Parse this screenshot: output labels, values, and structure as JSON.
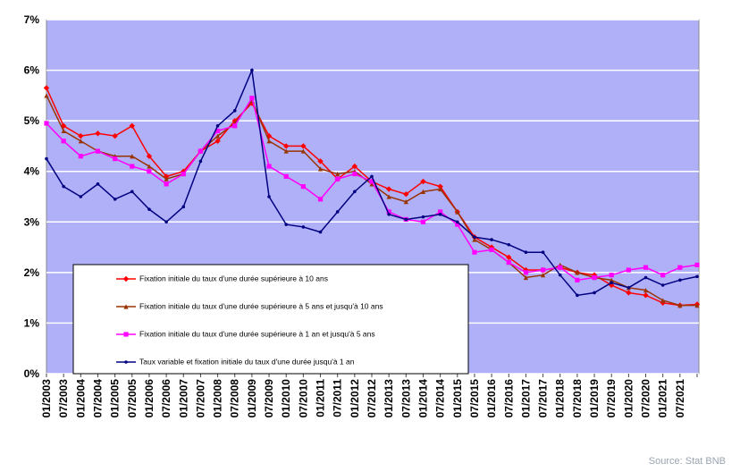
{
  "chart_data": {
    "type": "line",
    "categories": [
      "01/2003",
      "07/2003",
      "01/2004",
      "07/2004",
      "01/2005",
      "07/2005",
      "01/2006",
      "07/2006",
      "01/2007",
      "07/2007",
      "01/2008",
      "07/2008",
      "01/2009",
      "07/2009",
      "01/2010",
      "07/2010",
      "01/2011",
      "07/2011",
      "01/2012",
      "07/2012",
      "01/2013",
      "07/2013",
      "01/2014",
      "07/2014",
      "01/2015",
      "07/2015",
      "01/2016",
      "07/2016",
      "01/2017",
      "07/2017",
      "01/2018",
      "07/2018",
      "01/2019",
      "07/2019",
      "01/2020",
      "07/2020",
      "01/2021",
      "07/2021",
      null
    ],
    "series": [
      {
        "name": "Fixation initiale du taux d'une durée supérieure à 10 ans",
        "color": "#ff0000",
        "marker": "diamond",
        "values": [
          5.65,
          4.9,
          4.7,
          4.75,
          4.7,
          4.9,
          4.3,
          3.9,
          4.0,
          4.4,
          4.6,
          5.0,
          5.35,
          4.7,
          4.5,
          4.5,
          4.2,
          3.85,
          4.1,
          3.8,
          3.65,
          3.55,
          3.8,
          3.7,
          3.2,
          2.7,
          2.5,
          2.3,
          2.05,
          2.05,
          2.1,
          2.0,
          1.95,
          1.75,
          1.6,
          1.55,
          1.4,
          1.35,
          1.37
        ]
      },
      {
        "name": "Fixation initiale du taux d'une durée supérieure à 5 ans et  jusqu'à 10 ans",
        "color": "#993300",
        "marker": "triangle",
        "values": [
          5.5,
          4.8,
          4.6,
          4.4,
          4.3,
          4.3,
          4.1,
          3.85,
          3.95,
          4.4,
          4.7,
          4.95,
          5.4,
          4.6,
          4.4,
          4.4,
          4.05,
          3.95,
          4.0,
          3.75,
          3.5,
          3.4,
          3.6,
          3.65,
          3.2,
          2.65,
          2.45,
          2.2,
          1.9,
          1.95,
          2.15,
          2.0,
          1.9,
          1.85,
          1.7,
          1.65,
          1.45,
          1.35,
          1.35
        ]
      },
      {
        "name": "Fixation initiale du taux d'une durée supérieure à 1 an et  jusqu'à 5 ans",
        "color": "#ff00ff",
        "marker": "square",
        "values": [
          4.95,
          4.6,
          4.3,
          4.4,
          4.25,
          4.1,
          4.0,
          3.75,
          3.95,
          4.4,
          4.8,
          4.9,
          5.45,
          4.1,
          3.9,
          3.7,
          3.45,
          3.85,
          3.95,
          3.8,
          3.2,
          3.05,
          3.0,
          3.2,
          2.95,
          2.4,
          2.45,
          2.2,
          2.0,
          2.05,
          2.1,
          1.85,
          1.9,
          1.95,
          2.05,
          2.1,
          1.95,
          2.1,
          2.15
        ]
      },
      {
        "name": "Taux variable et fixation initiale du taux d'une durée jusqu'à 1 an",
        "color": "#000080",
        "marker": "dot",
        "values": [
          4.25,
          3.7,
          3.5,
          3.75,
          3.45,
          3.6,
          3.25,
          3.0,
          3.3,
          4.2,
          4.9,
          5.2,
          6.0,
          3.5,
          2.95,
          2.9,
          2.8,
          3.2,
          3.6,
          3.9,
          3.15,
          3.05,
          3.1,
          3.15,
          3.0,
          2.7,
          2.65,
          2.55,
          2.4,
          2.4,
          1.95,
          1.55,
          1.6,
          1.8,
          1.7,
          1.9,
          1.75,
          1.85,
          1.92
        ]
      }
    ],
    "ylim": [
      0,
      7
    ],
    "yticks": [
      {
        "value": 0,
        "label": "0%"
      },
      {
        "value": 1,
        "label": "1%"
      },
      {
        "value": 2,
        "label": "2%"
      },
      {
        "value": 3,
        "label": "3%"
      },
      {
        "value": 4,
        "label": "4%"
      },
      {
        "value": 5,
        "label": "5%"
      },
      {
        "value": 6,
        "label": "6%"
      },
      {
        "value": 7,
        "label": "7%"
      }
    ],
    "grid": true,
    "legend": "lower left",
    "source": "Source: Stat BNB"
  }
}
